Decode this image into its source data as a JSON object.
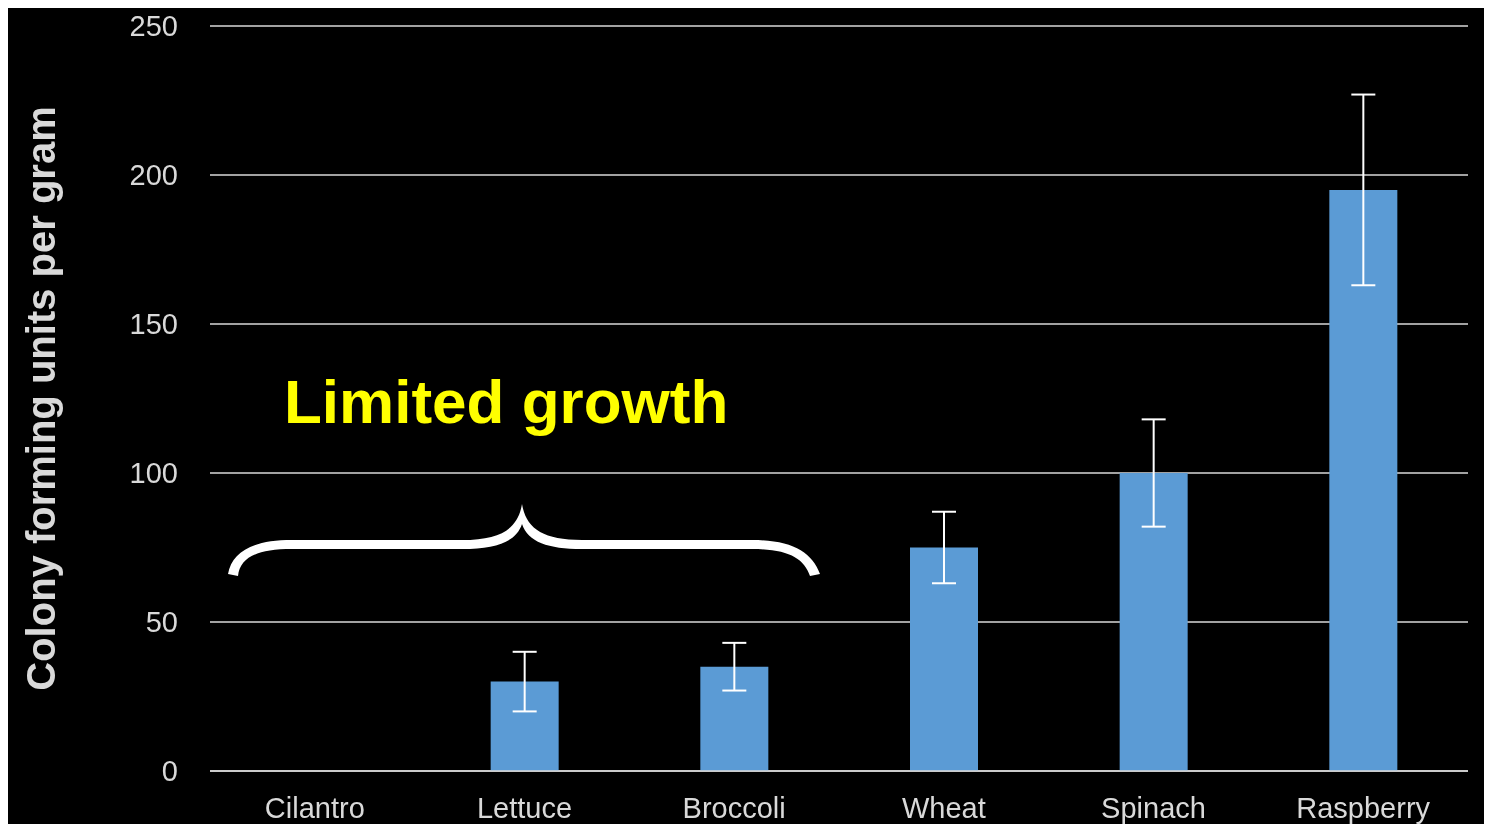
{
  "chart_data": {
    "type": "bar",
    "ylabel": "Colony forming units per gram",
    "categories": [
      "Cilantro",
      "Lettuce",
      "Broccoli",
      "Wheat",
      "Spinach",
      "Raspberry"
    ],
    "values": [
      0,
      30,
      35,
      75,
      100,
      195
    ],
    "errors": [
      null,
      10,
      8,
      12,
      18,
      32
    ],
    "color": "#5b9bd5",
    "ylim": [
      0,
      250
    ],
    "yticks": [
      0,
      50,
      100,
      150,
      200,
      250
    ],
    "grid": "y",
    "annotations": [
      "Limited growth"
    ]
  }
}
